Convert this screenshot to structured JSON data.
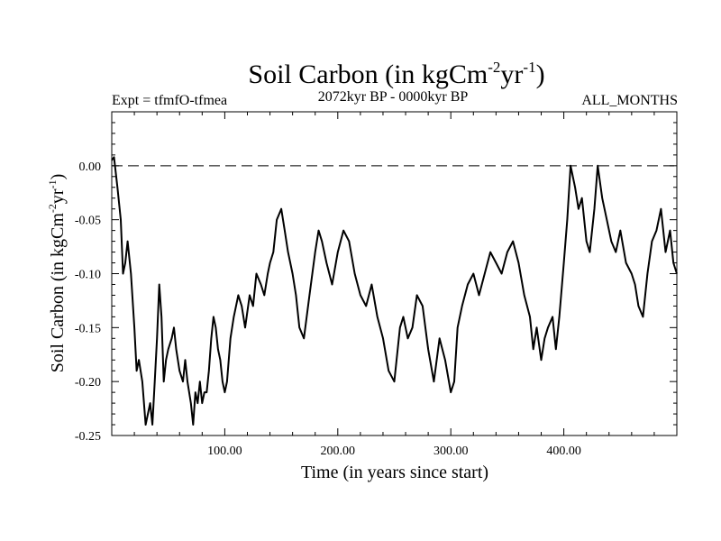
{
  "chart_data": {
    "type": "line",
    "title": {
      "main": "Soil Carbon (in kgCm",
      "sup1": "-2",
      "mid": "yr",
      "sup2": "-1",
      "end": ")"
    },
    "subtitle_left": "Expt = tfmfO-tfmea",
    "subtitle_center": "2072kyr BP - 0000kyr BP",
    "subtitle_right": "ALL_MONTHS",
    "xlabel": "Time (in years since start)",
    "ylabel": {
      "main": "Soil Carbon (in kgCm",
      "sup1": "-2",
      "mid": "yr",
      "sup2": "-1",
      "end": ")"
    },
    "xlim": [
      0,
      500
    ],
    "ylim": [
      -0.25,
      0.05
    ],
    "x_ticks": [
      {
        "value": 100,
        "label": "100.00"
      },
      {
        "value": 200,
        "label": "200.00"
      },
      {
        "value": 300,
        "label": "300.00"
      },
      {
        "value": 400,
        "label": "400.00"
      }
    ],
    "y_ticks": [
      {
        "value": 0.0,
        "label": "0.00"
      },
      {
        "value": -0.05,
        "label": "-0.05"
      },
      {
        "value": -0.1,
        "label": "-0.10"
      },
      {
        "value": -0.15,
        "label": "-0.15"
      },
      {
        "value": -0.2,
        "label": "-0.20"
      },
      {
        "value": -0.25,
        "label": "-0.25"
      }
    ],
    "reference_line": {
      "y": 0.0,
      "style": "dashed"
    },
    "series": [
      {
        "name": "Soil Carbon",
        "color": "#000000",
        "x": [
          0,
          2,
          5,
          8,
          10,
          12,
          14,
          17,
          20,
          22,
          24,
          27,
          30,
          32,
          34,
          36,
          38,
          40,
          42,
          44,
          46,
          48,
          50,
          53,
          55,
          57,
          60,
          63,
          65,
          67,
          70,
          72,
          74,
          76,
          78,
          80,
          82,
          84,
          86,
          88,
          90,
          92,
          94,
          96,
          98,
          100,
          102,
          105,
          108,
          112,
          115,
          118,
          122,
          125,
          128,
          132,
          135,
          138,
          140,
          143,
          146,
          150,
          153,
          156,
          158,
          160,
          163,
          166,
          170,
          175,
          180,
          183,
          186,
          190,
          195,
          200,
          205,
          210,
          215,
          220,
          225,
          230,
          235,
          240,
          245,
          250,
          255,
          258,
          262,
          266,
          270,
          275,
          280,
          285,
          290,
          295,
          300,
          303,
          306,
          310,
          315,
          320,
          325,
          330,
          335,
          340,
          345,
          350,
          355,
          360,
          365,
          370,
          373,
          376,
          380,
          383,
          386,
          390,
          393,
          396,
          400,
          403,
          406,
          410,
          413,
          416,
          420,
          423,
          427,
          430,
          434,
          438,
          442,
          446,
          450,
          455,
          460,
          463,
          466,
          470,
          474,
          478,
          482,
          486,
          490,
          494,
          497,
          500
        ],
        "y": [
          0.005,
          0.008,
          -0.02,
          -0.05,
          -0.1,
          -0.09,
          -0.07,
          -0.1,
          -0.15,
          -0.19,
          -0.18,
          -0.2,
          -0.24,
          -0.23,
          -0.22,
          -0.24,
          -0.2,
          -0.16,
          -0.11,
          -0.14,
          -0.2,
          -0.18,
          -0.17,
          -0.16,
          -0.15,
          -0.17,
          -0.19,
          -0.2,
          -0.18,
          -0.2,
          -0.22,
          -0.24,
          -0.21,
          -0.22,
          -0.2,
          -0.22,
          -0.21,
          -0.21,
          -0.19,
          -0.16,
          -0.14,
          -0.15,
          -0.17,
          -0.18,
          -0.2,
          -0.21,
          -0.2,
          -0.16,
          -0.14,
          -0.12,
          -0.13,
          -0.15,
          -0.12,
          -0.13,
          -0.1,
          -0.11,
          -0.12,
          -0.1,
          -0.09,
          -0.08,
          -0.05,
          -0.04,
          -0.06,
          -0.08,
          -0.09,
          -0.1,
          -0.12,
          -0.15,
          -0.16,
          -0.12,
          -0.08,
          -0.06,
          -0.07,
          -0.09,
          -0.11,
          -0.08,
          -0.06,
          -0.07,
          -0.1,
          -0.12,
          -0.13,
          -0.11,
          -0.14,
          -0.16,
          -0.19,
          -0.2,
          -0.15,
          -0.14,
          -0.16,
          -0.15,
          -0.12,
          -0.13,
          -0.17,
          -0.2,
          -0.16,
          -0.18,
          -0.21,
          -0.2,
          -0.15,
          -0.13,
          -0.11,
          -0.1,
          -0.12,
          -0.1,
          -0.08,
          -0.09,
          -0.1,
          -0.08,
          -0.07,
          -0.09,
          -0.12,
          -0.14,
          -0.17,
          -0.15,
          -0.18,
          -0.16,
          -0.15,
          -0.14,
          -0.17,
          -0.14,
          -0.09,
          -0.05,
          0.0,
          -0.02,
          -0.04,
          -0.03,
          -0.07,
          -0.08,
          -0.04,
          0.0,
          -0.03,
          -0.05,
          -0.07,
          -0.08,
          -0.06,
          -0.09,
          -0.1,
          -0.11,
          -0.13,
          -0.14,
          -0.1,
          -0.07,
          -0.06,
          -0.04,
          -0.08,
          -0.06,
          -0.09,
          -0.1
        ]
      }
    ]
  }
}
